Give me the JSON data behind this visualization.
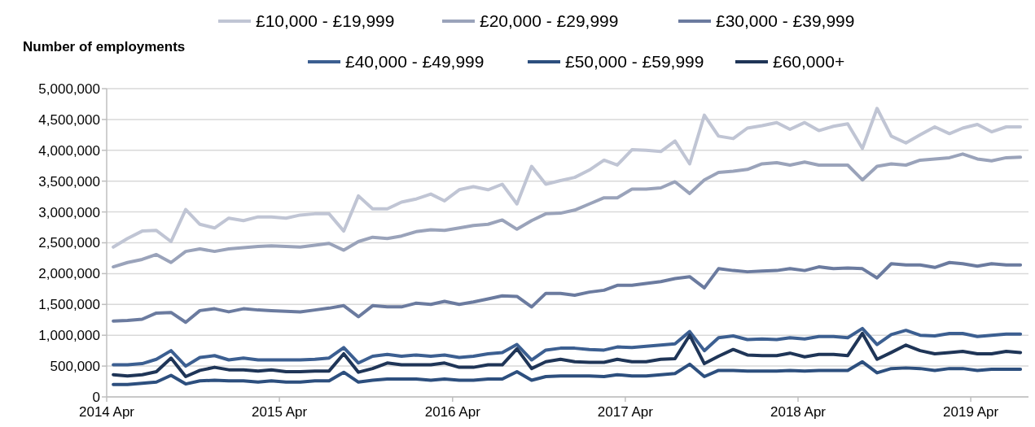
{
  "chart_data": {
    "type": "line",
    "ylabel": "Number of employments",
    "x": [
      "2014-04-15",
      "2014-05-15",
      "2014-06-15",
      "2014-07-15",
      "2014-08-15",
      "2014-09-15",
      "2014-10-15",
      "2014-11-15",
      "2014-12-15",
      "2015-01-15",
      "2015-02-15",
      "2015-03-15",
      "2015-04-15",
      "2015-05-15",
      "2015-06-15",
      "2015-07-15",
      "2015-08-15",
      "2015-09-15",
      "2015-10-15",
      "2015-11-15",
      "2015-12-15",
      "2016-01-15",
      "2016-02-15",
      "2016-03-15",
      "2016-04-15",
      "2016-05-15",
      "2016-06-15",
      "2016-07-15",
      "2016-08-15",
      "2016-09-15",
      "2016-10-15",
      "2016-11-15",
      "2016-12-15",
      "2017-01-15",
      "2017-02-15",
      "2017-03-15",
      "2017-04-15",
      "2017-05-15",
      "2017-06-15",
      "2017-07-15",
      "2017-08-15",
      "2017-09-15",
      "2017-10-15",
      "2017-11-15",
      "2017-12-15",
      "2018-01-15",
      "2018-02-15",
      "2018-03-15",
      "2018-04-15",
      "2018-05-15",
      "2018-06-15",
      "2018-07-15",
      "2018-08-15",
      "2018-09-15",
      "2018-10-15",
      "2018-11-15",
      "2018-12-15",
      "2019-01-15",
      "2019-02-15",
      "2019-03-15",
      "2019-04-15",
      "2019-05-15",
      "2019-06-15",
      "2019-07-15"
    ],
    "series": [
      {
        "name": "£10,000 - £19,999",
        "color": "#c0c5d4",
        "values": [
          2430000,
          2570000,
          2690000,
          2700000,
          2520000,
          3040000,
          2800000,
          2740000,
          2900000,
          2860000,
          2920000,
          2920000,
          2900000,
          2950000,
          2970000,
          2970000,
          2690000,
          3260000,
          3050000,
          3050000,
          3160000,
          3210000,
          3290000,
          3180000,
          3360000,
          3410000,
          3360000,
          3450000,
          3130000,
          3740000,
          3450000,
          3510000,
          3560000,
          3680000,
          3840000,
          3760000,
          4010000,
          4000000,
          3980000,
          4150000,
          3780000,
          4570000,
          4230000,
          4190000,
          4360000,
          4400000,
          4450000,
          4340000,
          4450000,
          4320000,
          4390000,
          4430000,
          4030000,
          4680000,
          4230000,
          4120000,
          4250000,
          4380000,
          4270000,
          4360000,
          4420000,
          4300000,
          4380000,
          4380000
        ]
      },
      {
        "name": "£20,000 - £29,999",
        "color": "#9aa3ba",
        "values": [
          2110000,
          2180000,
          2230000,
          2310000,
          2180000,
          2360000,
          2400000,
          2360000,
          2400000,
          2420000,
          2440000,
          2450000,
          2440000,
          2430000,
          2460000,
          2490000,
          2380000,
          2520000,
          2590000,
          2570000,
          2610000,
          2680000,
          2710000,
          2700000,
          2740000,
          2780000,
          2800000,
          2870000,
          2720000,
          2860000,
          2970000,
          2980000,
          3030000,
          3130000,
          3230000,
          3230000,
          3370000,
          3370000,
          3390000,
          3490000,
          3300000,
          3520000,
          3640000,
          3660000,
          3690000,
          3780000,
          3800000,
          3760000,
          3810000,
          3760000,
          3760000,
          3760000,
          3520000,
          3740000,
          3780000,
          3760000,
          3840000,
          3860000,
          3880000,
          3940000,
          3860000,
          3830000,
          3880000,
          3890000
        ]
      },
      {
        "name": "£30,000 - £39,999",
        "color": "#6b7b9f",
        "values": [
          1230000,
          1240000,
          1260000,
          1360000,
          1370000,
          1210000,
          1400000,
          1430000,
          1380000,
          1430000,
          1410000,
          1400000,
          1390000,
          1380000,
          1410000,
          1440000,
          1480000,
          1300000,
          1480000,
          1460000,
          1460000,
          1520000,
          1500000,
          1550000,
          1500000,
          1540000,
          1590000,
          1640000,
          1630000,
          1460000,
          1680000,
          1680000,
          1650000,
          1700000,
          1730000,
          1810000,
          1810000,
          1840000,
          1870000,
          1920000,
          1950000,
          1770000,
          2080000,
          2050000,
          2030000,
          2040000,
          2050000,
          2080000,
          2050000,
          2110000,
          2080000,
          2090000,
          2080000,
          1930000,
          2160000,
          2140000,
          2140000,
          2100000,
          2180000,
          2160000,
          2120000,
          2160000,
          2140000,
          2140000
        ]
      },
      {
        "name": "£40,000 - £49,999",
        "color": "#3c5f91",
        "values": [
          520000,
          520000,
          540000,
          610000,
          750000,
          500000,
          640000,
          670000,
          600000,
          630000,
          600000,
          600000,
          600000,
          600000,
          610000,
          630000,
          800000,
          550000,
          660000,
          690000,
          660000,
          680000,
          660000,
          680000,
          640000,
          660000,
          700000,
          720000,
          850000,
          600000,
          760000,
          790000,
          790000,
          770000,
          760000,
          810000,
          800000,
          820000,
          840000,
          860000,
          1060000,
          750000,
          960000,
          990000,
          930000,
          940000,
          930000,
          960000,
          940000,
          980000,
          980000,
          960000,
          1110000,
          850000,
          1010000,
          1080000,
          1000000,
          990000,
          1030000,
          1030000,
          980000,
          1000000,
          1020000,
          1020000
        ]
      },
      {
        "name": "£50,000 - £59,999",
        "color": "#2d4f7e",
        "values": [
          200000,
          200000,
          220000,
          240000,
          350000,
          210000,
          260000,
          270000,
          260000,
          260000,
          240000,
          260000,
          240000,
          240000,
          260000,
          260000,
          400000,
          240000,
          270000,
          290000,
          290000,
          290000,
          270000,
          290000,
          270000,
          270000,
          290000,
          290000,
          410000,
          270000,
          330000,
          340000,
          340000,
          340000,
          330000,
          360000,
          340000,
          340000,
          360000,
          380000,
          530000,
          330000,
          430000,
          430000,
          420000,
          420000,
          420000,
          430000,
          420000,
          430000,
          430000,
          430000,
          570000,
          390000,
          460000,
          470000,
          460000,
          430000,
          460000,
          460000,
          430000,
          450000,
          450000,
          450000
        ]
      },
      {
        "name": "£60,000+",
        "color": "#1f3557",
        "values": [
          360000,
          340000,
          360000,
          410000,
          630000,
          330000,
          430000,
          480000,
          440000,
          440000,
          420000,
          440000,
          410000,
          410000,
          420000,
          420000,
          700000,
          400000,
          460000,
          550000,
          520000,
          520000,
          520000,
          550000,
          480000,
          480000,
          520000,
          520000,
          780000,
          460000,
          570000,
          610000,
          570000,
          560000,
          560000,
          610000,
          570000,
          570000,
          610000,
          620000,
          1000000,
          540000,
          660000,
          770000,
          680000,
          670000,
          670000,
          710000,
          650000,
          690000,
          690000,
          670000,
          1030000,
          610000,
          720000,
          840000,
          750000,
          700000,
          720000,
          740000,
          700000,
          700000,
          740000,
          720000
        ]
      }
    ],
    "xlim": [
      "2014-04-01",
      "2019-08-01"
    ],
    "xticks": [
      {
        "value": "2014-04-01",
        "label": "2014 Apr"
      },
      {
        "value": "2015-04-01",
        "label": "2015 Apr"
      },
      {
        "value": "2016-04-01",
        "label": "2016 Apr"
      },
      {
        "value": "2017-04-01",
        "label": "2017 Apr"
      },
      {
        "value": "2018-04-01",
        "label": "2018 Apr"
      },
      {
        "value": "2019-04-01",
        "label": "2019 Apr"
      }
    ],
    "ylim": [
      0,
      5000000
    ],
    "yticks": [
      {
        "value": 0,
        "label": "0"
      },
      {
        "value": 500000,
        "label": "500,000"
      },
      {
        "value": 1000000,
        "label": "1,000,000"
      },
      {
        "value": 1500000,
        "label": "1,500,000"
      },
      {
        "value": 2000000,
        "label": "2,000,000"
      },
      {
        "value": 2500000,
        "label": "2,500,000"
      },
      {
        "value": 3000000,
        "label": "3,000,000"
      },
      {
        "value": 3500000,
        "label": "3,500,000"
      },
      {
        "value": 4000000,
        "label": "4,000,000"
      },
      {
        "value": 4500000,
        "label": "4,500,000"
      },
      {
        "value": 5000000,
        "label": "5,000,000"
      }
    ],
    "grid": "y",
    "legend": "top",
    "marker": "none",
    "line_style": "solid"
  }
}
